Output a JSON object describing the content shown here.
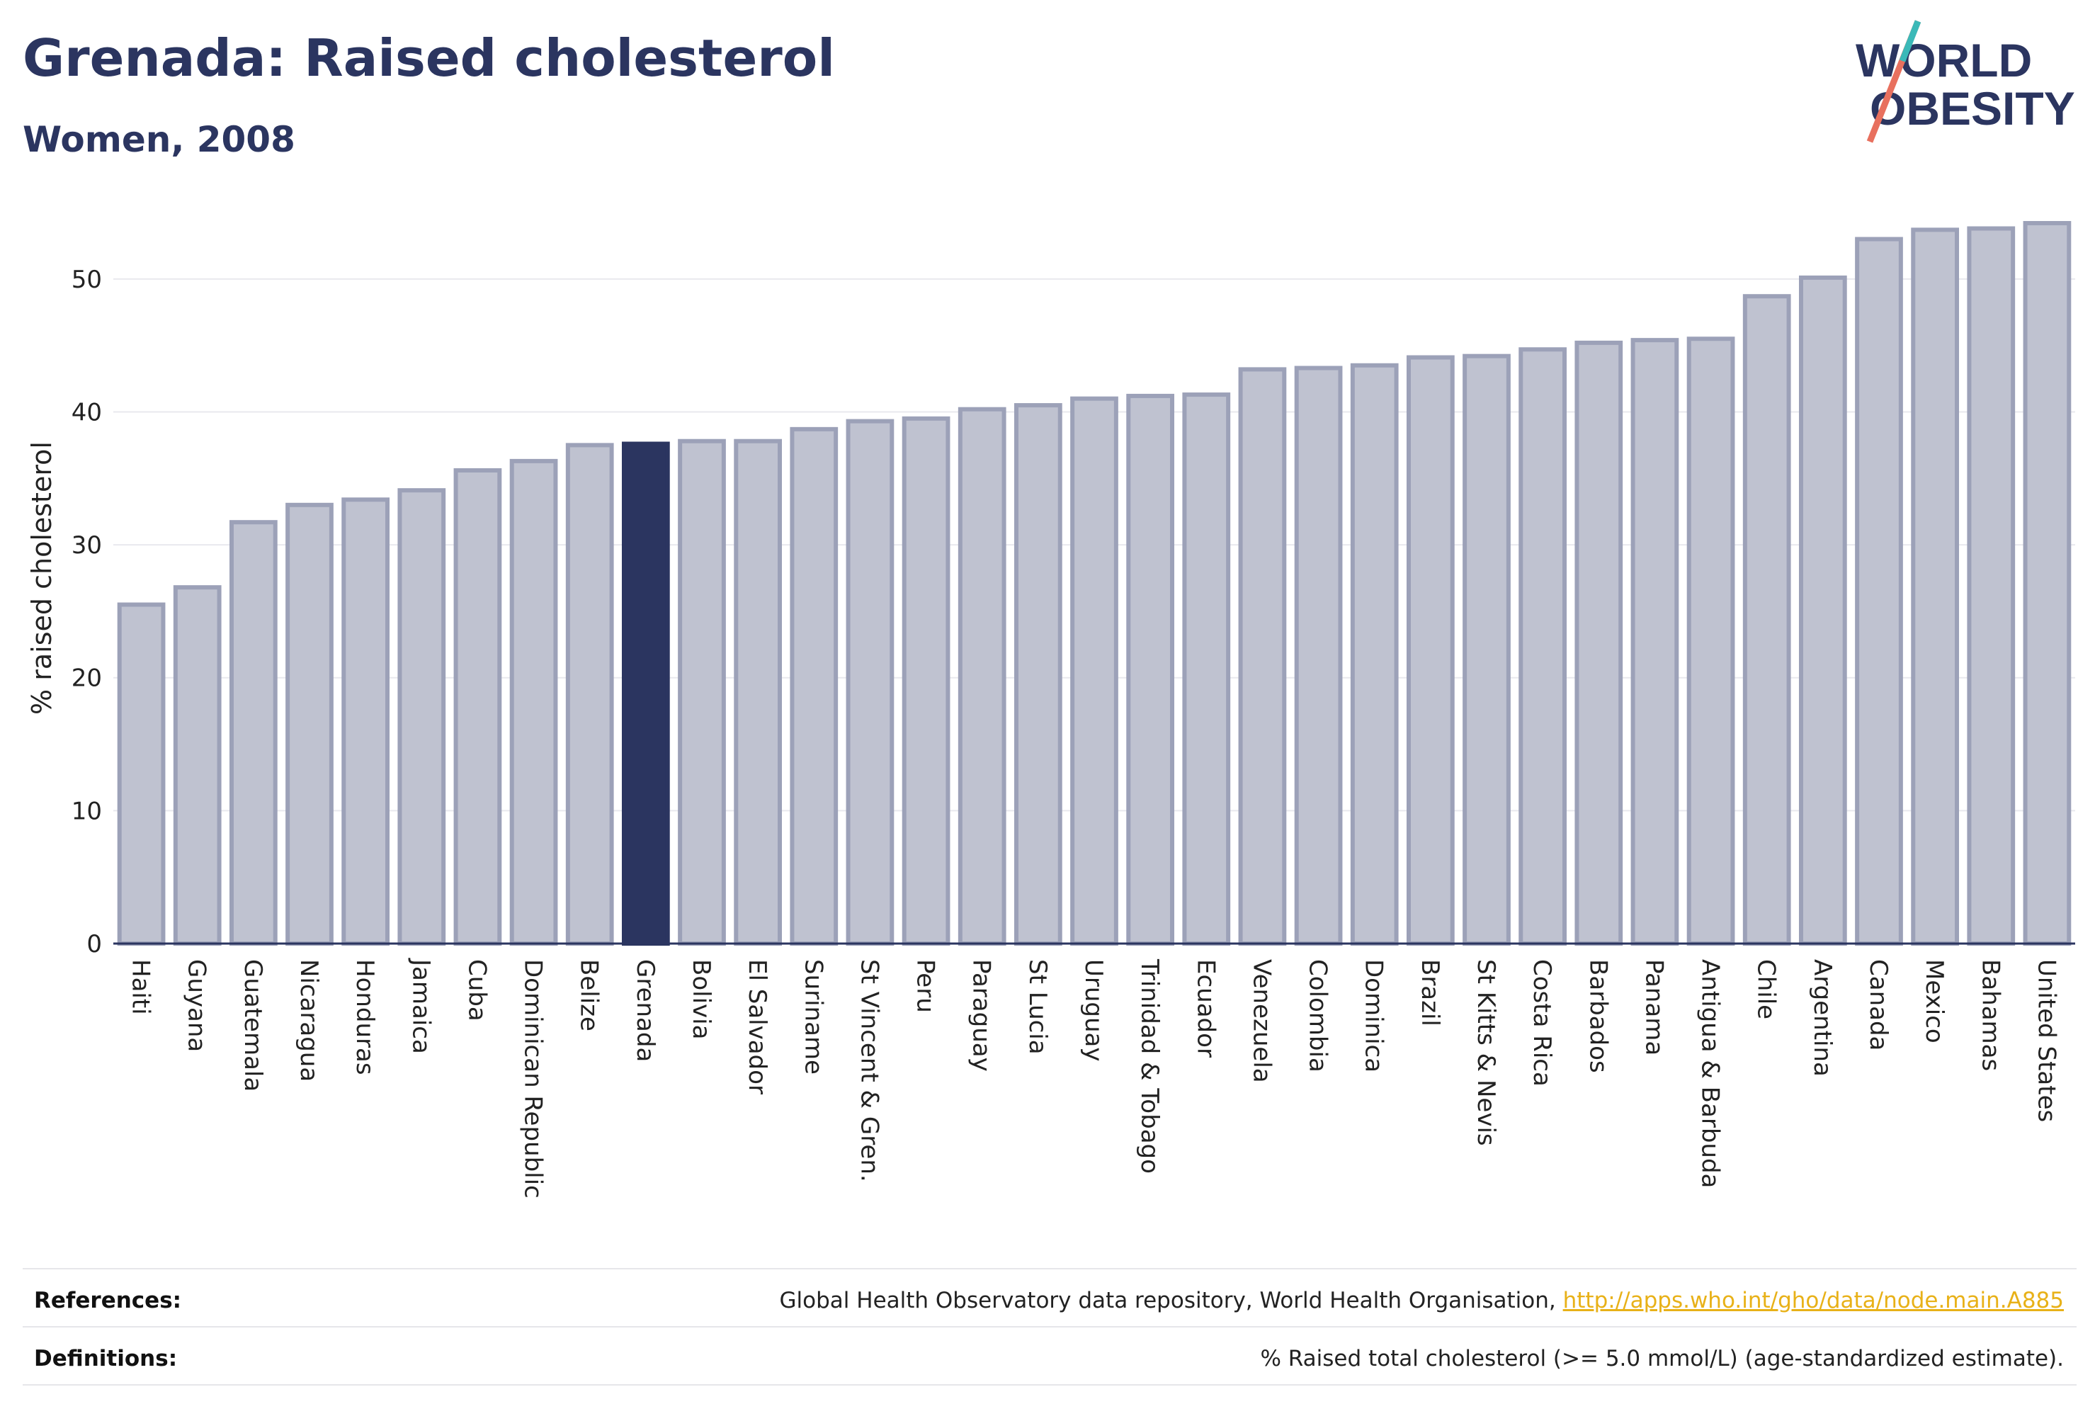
{
  "header": {
    "title": "Grenada: Raised cholesterol",
    "subtitle": "Women, 2008"
  },
  "logo": {
    "line1": "WORLD",
    "line2": "OBESITY"
  },
  "chart_data": {
    "type": "bar",
    "ylabel": "% raised cholesterol",
    "ylim": [
      0,
      55
    ],
    "yticks": [
      0,
      10,
      20,
      30,
      40,
      50
    ],
    "grid": true,
    "highlight": "Grenada",
    "colors": {
      "bar": "#bfc2d0",
      "bar_stroke": "#9ca1b8",
      "highlight": "#2b3560",
      "grid": "#e9e9ee",
      "axis": "#2b3560"
    },
    "categories": [
      "Haiti",
      "Guyana",
      "Guatemala",
      "Nicaragua",
      "Honduras",
      "Jamaica",
      "Cuba",
      "Dominican Republic",
      "Belize",
      "Grenada",
      "Bolivia",
      "El Salvador",
      "Suriname",
      "St Vincent & Gren.",
      "Peru",
      "Paraguay",
      "St Lucia",
      "Uruguay",
      "Trinidad & Tobago",
      "Ecuador",
      "Venezuela",
      "Colombia",
      "Dominica",
      "Brazil",
      "St Kitts & Nevis",
      "Costa Rica",
      "Barbados",
      "Panama",
      "Antigua & Barbuda",
      "Chile",
      "Argentina",
      "Canada",
      "Mexico",
      "Bahamas",
      "United States"
    ],
    "values": [
      25.5,
      26.8,
      31.7,
      33.0,
      33.4,
      34.1,
      35.6,
      36.3,
      37.5,
      37.6,
      37.8,
      37.8,
      38.7,
      39.3,
      39.5,
      40.2,
      40.5,
      41.0,
      41.2,
      41.3,
      43.2,
      43.3,
      43.5,
      44.1,
      44.2,
      44.7,
      45.2,
      45.4,
      45.5,
      48.7,
      50.1,
      53.0,
      53.7,
      53.8,
      54.2
    ]
  },
  "footer": {
    "references_label": "References:",
    "references_text": "Global Health Observatory data repository, World Health Organisation, ",
    "references_link": "http://apps.who.int/gho/data/node.main.A885",
    "definitions_label": "Definitions:",
    "definitions_text": "% Raised total cholesterol (>= 5.0 mmol/L) (age-standardized estimate)."
  }
}
